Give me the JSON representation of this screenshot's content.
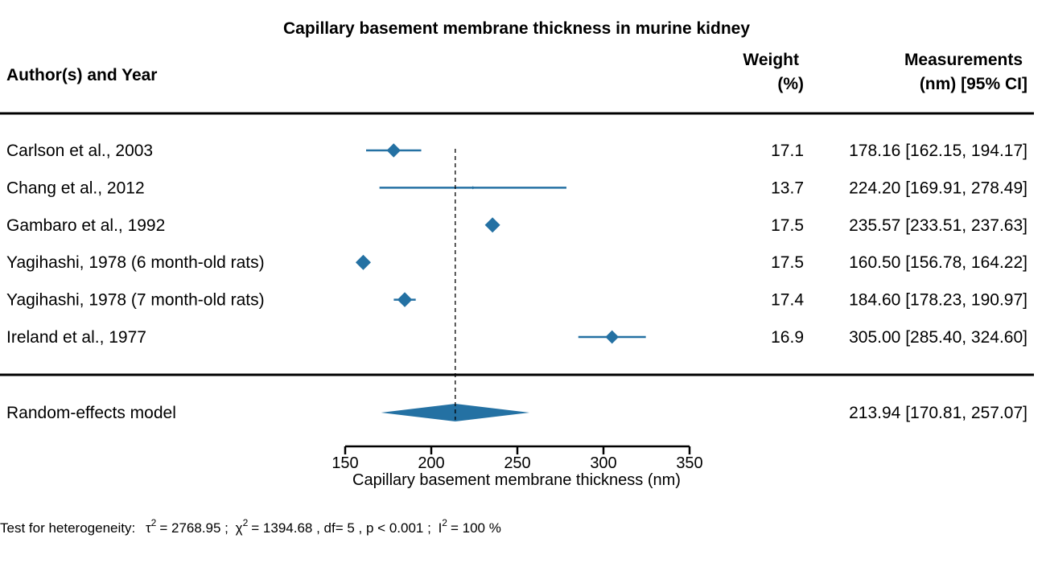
{
  "chart_data": {
    "type": "forest",
    "title": "Capillary basement membrane thickness in murine kidney",
    "columns": {
      "study": "Author(s) and Year",
      "weight_line1": "Weight",
      "weight_line2": "(%)",
      "measure_line1": "Measurements",
      "measure_line2": "(nm) [95% CI]"
    },
    "studies": [
      {
        "label": "Carlson et al., 2003",
        "weight": "17.1",
        "estimate": 178.16,
        "lower": 162.15,
        "upper": 194.17,
        "text": "178.16 [162.15, 194.17]"
      },
      {
        "label": "Chang et al., 2012",
        "weight": "13.7",
        "estimate": 224.2,
        "lower": 169.91,
        "upper": 278.49,
        "text": "224.20 [169.91, 278.49]"
      },
      {
        "label": "Gambaro et al., 1992",
        "weight": "17.5",
        "estimate": 235.57,
        "lower": 233.51,
        "upper": 237.63,
        "text": "235.57 [233.51, 237.63]"
      },
      {
        "label": "Yagihashi, 1978 (6 month-old rats)",
        "weight": "17.5",
        "estimate": 160.5,
        "lower": 156.78,
        "upper": 164.22,
        "text": "160.50 [156.78, 164.22]"
      },
      {
        "label": "Yagihashi, 1978 (7 month-old rats)",
        "weight": "17.4",
        "estimate": 184.6,
        "lower": 178.23,
        "upper": 190.97,
        "text": "184.60 [178.23, 190.97]"
      },
      {
        "label": "Ireland et al., 1977",
        "weight": "16.9",
        "estimate": 305.0,
        "lower": 285.4,
        "upper": 324.6,
        "text": "305.00 [285.40, 324.60]"
      }
    ],
    "summary": {
      "label": "Random-effects model",
      "estimate": 213.94,
      "lower": 170.81,
      "upper": 257.07,
      "text": "213.94 [170.81, 257.07]"
    },
    "xlabel": "Capillary basement membrane thickness (nm)",
    "xlim": [
      150,
      350
    ],
    "xticks": [
      150,
      200,
      250,
      300,
      350
    ],
    "reference_line": 213.94,
    "heterogeneity": {
      "prefix": "Test for heterogeneity:",
      "tau_sym": "τ",
      "tau_value": "= 2768.95 ;",
      "chi_sym": "χ",
      "chi_value": "= 1394.68 , df= 5 ,  p < 0.001 ;",
      "i_sym": "I",
      "i_value": "= 100 %",
      "sup": "2"
    },
    "colors": {
      "marker": "#2471a3",
      "text": "#000000"
    }
  }
}
